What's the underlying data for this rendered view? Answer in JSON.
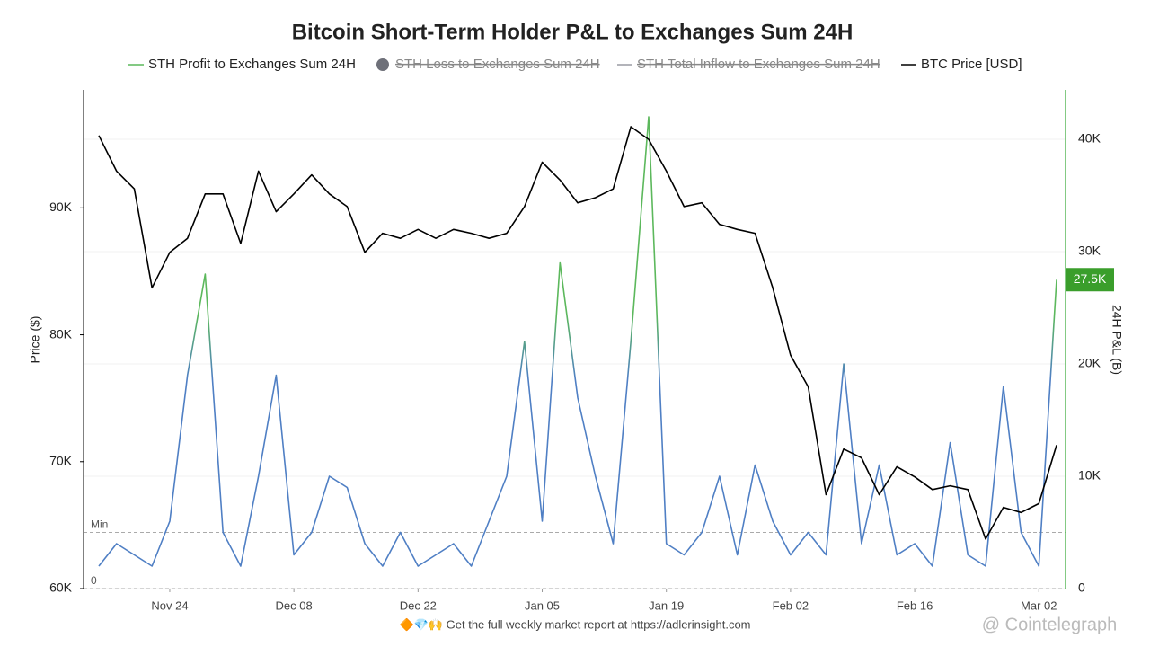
{
  "chart_data": {
    "type": "line",
    "title": "Bitcoin Short-Term Holder P&L to Exchanges Sum 24H",
    "y_label": "Price ($)",
    "y2_label": "24H P&L (B)",
    "footer": "🔶💎🙌 Get the full weekly market report at https://adlerinsight.com",
    "watermark": "@ Cointelegraph",
    "categories": [
      null,
      null,
      null,
      null,
      "Nov 24",
      null,
      null,
      null,
      null,
      null,
      null,
      "Dec 08",
      null,
      null,
      null,
      null,
      null,
      null,
      "Dec 22",
      null,
      null,
      null,
      null,
      null,
      null,
      "Jan 05",
      null,
      null,
      null,
      null,
      null,
      null,
      "Jan 19",
      null,
      null,
      null,
      null,
      null,
      null,
      "Feb 02",
      null,
      null,
      null,
      null,
      null,
      null,
      "Feb 16",
      null,
      null,
      null,
      null,
      null,
      null,
      "Mar 02",
      null
    ],
    "series": [
      {
        "name": "STH Profit to Exchanges Sum 24H",
        "color": "#5cb85c",
        "low_color": "#4f7fc4",
        "axis": "y2",
        "values": [
          2000,
          4000,
          3000,
          2000,
          6000,
          19000,
          28000,
          5000,
          2000,
          10000,
          19000,
          3000,
          5000,
          10000,
          9000,
          4000,
          2000,
          5000,
          2000,
          3000,
          4000,
          2000,
          6000,
          10000,
          22000,
          6000,
          29000,
          17000,
          10000,
          4000,
          22000,
          42000,
          4000,
          3000,
          5000,
          10000,
          3000,
          11000,
          6000,
          3000,
          5000,
          3000,
          20000,
          4000,
          11000,
          3000,
          4000,
          2000,
          13000,
          3000,
          2000,
          18000,
          5000,
          2000,
          27500
        ],
        "value_labels": [
          null,
          null,
          null,
          null,
          null,
          null,
          null,
          null,
          null,
          null,
          null,
          null,
          null,
          null,
          null,
          null,
          null,
          null,
          null,
          null,
          null,
          null,
          null,
          null,
          null,
          null,
          null,
          null,
          null,
          null,
          null,
          null,
          null,
          null,
          null,
          null,
          null,
          null,
          null,
          null,
          null,
          null,
          null,
          null,
          null,
          null,
          null,
          null,
          null,
          null,
          null,
          null,
          null,
          null,
          "27.5K"
        ]
      },
      {
        "name": "BTC Price [USD]",
        "color": "#000000",
        "values": [
          95700,
          92900,
          91500,
          83700,
          86500,
          87600,
          91100,
          91100,
          87200,
          92900,
          89700,
          91100,
          92600,
          91100,
          90100,
          86500,
          88000,
          87600,
          88300,
          87600,
          88300,
          88000,
          87600,
          88000,
          90100,
          93600,
          92200,
          90400,
          90800,
          91500,
          96400,
          95400,
          92900,
          90100,
          90400,
          88700,
          88300,
          88000,
          83700,
          78400,
          75900,
          67400,
          71000,
          70300,
          67400,
          69600,
          68800,
          67800,
          68100,
          67800,
          63900,
          66400,
          66000,
          66700,
          71300
        ]
      }
    ],
    "hidden_series": [
      {
        "name": "STH Loss to Exchanges Sum 24H",
        "color": "#6e7079"
      },
      {
        "name": "STH Total Inflow to  Exchanges Sum 24H",
        "color": "#9a9ca3"
      }
    ],
    "ylim": [
      60000,
      99300
    ],
    "yticks": [
      {
        "value": 60000,
        "label": "60K"
      },
      {
        "value": 70000,
        "label": "70K"
      },
      {
        "value": 80000,
        "label": "80K"
      },
      {
        "value": 90000,
        "label": "90K"
      }
    ],
    "y2lim": [
      0,
      44400
    ],
    "y2ticks": [
      0,
      {
        "value": 10000,
        "label": "10K"
      },
      {
        "value": 20000,
        "label": "20K"
      },
      {
        "value": 30000,
        "label": "30K"
      },
      {
        "value": 40000,
        "label": "40K"
      }
    ],
    "reference_lines": [
      {
        "label": "Min",
        "value": 5000
      },
      {
        "label": "0",
        "value": 0
      }
    ],
    "grid": true
  }
}
